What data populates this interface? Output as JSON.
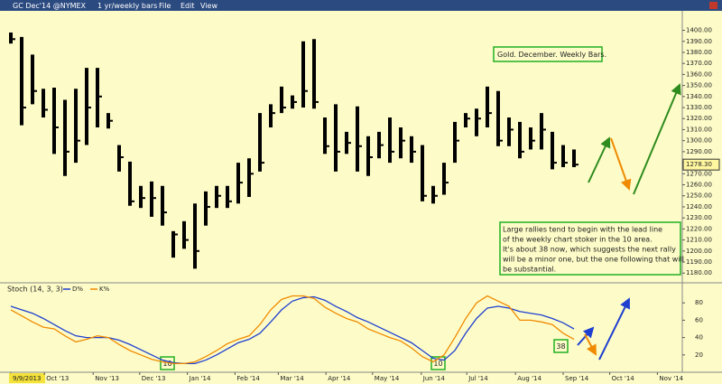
{
  "toolbar": {
    "symbol": "GC Dec'14 @NYMEX",
    "period": "1 yr/weekly bars",
    "menu": [
      "File",
      "Edit",
      "View"
    ]
  },
  "chart_data": [
    {
      "type": "hlc",
      "color": "#000000",
      "high": [
        1398,
        1394,
        1378,
        1347,
        1348,
        1337,
        1347,
        1366,
        1366,
        1325,
        1296,
        1281,
        1259,
        1263,
        1259,
        1218,
        1227,
        1243,
        1254,
        1259,
        1259,
        1280,
        1284,
        1325,
        1333,
        1349,
        1341,
        1390,
        1392,
        1321,
        1333,
        1308,
        1331,
        1304,
        1308,
        1321,
        1312,
        1304,
        1296,
        1259,
        1280,
        1317,
        1325,
        1329,
        1349,
        1345,
        1321,
        1317,
        1312,
        1325,
        1308,
        1296,
        1292
      ],
      "low": [
        1388,
        1314,
        1333,
        1321,
        1288,
        1268,
        1280,
        1296,
        1312,
        1311,
        1272,
        1241,
        1239,
        1231,
        1223,
        1194,
        1202,
        1184,
        1223,
        1239,
        1239,
        1243,
        1249,
        1272,
        1312,
        1325,
        1329,
        1330,
        1329,
        1288,
        1272,
        1288,
        1272,
        1268,
        1284,
        1280,
        1284,
        1280,
        1245,
        1243,
        1251,
        1280,
        1312,
        1304,
        1312,
        1295,
        1295,
        1284,
        1292,
        1292,
        1274,
        1276,
        1276
      ],
      "close": [
        1392,
        1330,
        1345,
        1328,
        1312,
        1290,
        1300,
        1330,
        1340,
        1318,
        1285,
        1245,
        1248,
        1248,
        1235,
        1215,
        1210,
        1200,
        1240,
        1250,
        1245,
        1262,
        1270,
        1280,
        1325,
        1330,
        1335,
        1345,
        1335,
        1295,
        1290,
        1298,
        1295,
        1285,
        1296,
        1290,
        1300,
        1290,
        1250,
        1250,
        1262,
        1300,
        1320,
        1320,
        1325,
        1300,
        1310,
        1290,
        1300,
        1310,
        1280,
        1280,
        1278.3
      ],
      "xlim": [
        -1,
        62
      ],
      "ylim": [
        1172,
        1416
      ],
      "yticks": [
        {
          "value": 1180,
          "label": "1180.00"
        },
        {
          "value": 1190,
          "label": "1190.00"
        },
        {
          "value": 1200,
          "label": "1200.00"
        },
        {
          "value": 1210,
          "label": "1210.00"
        },
        {
          "value": 1220,
          "label": "1220.00"
        },
        {
          "value": 1230,
          "label": "1230.00"
        },
        {
          "value": 1240,
          "label": "1240.00"
        },
        {
          "value": 1250,
          "label": "1250.00"
        },
        {
          "value": 1260,
          "label": "1260.00"
        },
        {
          "value": 1270,
          "label": "1270.00"
        },
        {
          "value": 1280,
          "label": "1280.00"
        },
        {
          "value": 1290,
          "label": "1290.00"
        },
        {
          "value": 1300,
          "label": "1300.00"
        },
        {
          "value": 1310,
          "label": "1310.00"
        },
        {
          "value": 1320,
          "label": "1320.00"
        },
        {
          "value": 1330,
          "label": "1330.00"
        },
        {
          "value": 1340,
          "label": "1340.00"
        },
        {
          "value": 1350,
          "label": "1350.00"
        },
        {
          "value": 1360,
          "label": "1360.00"
        },
        {
          "value": 1370,
          "label": "1370.00"
        },
        {
          "value": 1380,
          "label": "1380.00"
        },
        {
          "value": 1390,
          "label": "1390.00"
        },
        {
          "value": 1400,
          "label": "1400.00"
        }
      ],
      "last_label": "1278.30",
      "title": "Gold. December. Weekly Bars.",
      "note": [
        "Large rallies tend to begin with the lead line",
        "of the weekly chart stoker in the 10 area.",
        "It's about 38 now, which suggests the next rally",
        "will be a minor one, but the one following that will",
        "be substantial."
      ]
    },
    {
      "type": "line",
      "title": "Stoch (14, 3, 3)",
      "series": [
        {
          "name": "D%",
          "color": "#1f3fd0",
          "values": [
            76,
            72,
            68,
            62,
            55,
            48,
            42,
            40,
            40,
            40,
            37,
            32,
            26,
            20,
            14,
            11,
            10,
            10,
            14,
            20,
            27,
            34,
            38,
            45,
            58,
            72,
            82,
            86,
            87,
            83,
            76,
            70,
            63,
            58,
            52,
            46,
            40,
            34,
            25,
            16,
            14,
            25,
            45,
            62,
            74,
            76,
            74,
            70,
            68,
            66,
            62,
            57,
            50
          ]
        },
        {
          "name": "K%",
          "color": "#f08a00",
          "values": [
            72,
            65,
            58,
            52,
            50,
            42,
            35,
            38,
            42,
            40,
            32,
            25,
            20,
            15,
            12,
            10,
            10,
            12,
            18,
            25,
            33,
            38,
            42,
            55,
            72,
            84,
            88,
            88,
            85,
            75,
            68,
            62,
            58,
            50,
            45,
            40,
            36,
            28,
            18,
            12,
            20,
            40,
            62,
            80,
            88,
            82,
            76,
            60,
            60,
            58,
            55,
            45,
            38
          ]
        }
      ],
      "xlim": [
        -1,
        62
      ],
      "ylim": [
        0,
        100
      ],
      "yticks": [
        20,
        40,
        60,
        80
      ],
      "xticks": [
        {
          "value": 0,
          "label": "9/9/2013"
        },
        {
          "value": 3.1,
          "label": "Oct '13"
        },
        {
          "value": 7.6,
          "label": "Nov '13"
        },
        {
          "value": 11.9,
          "label": "Dec '13"
        },
        {
          "value": 16.3,
          "label": "Jan '14"
        },
        {
          "value": 20.7,
          "label": "Feb '14"
        },
        {
          "value": 24.7,
          "label": "Mar '14"
        },
        {
          "value": 29.1,
          "label": "Apr '14"
        },
        {
          "value": 33.4,
          "label": "May '14"
        },
        {
          "value": 37.9,
          "label": "Jun '14"
        },
        {
          "value": 42.1,
          "label": "Jul '14"
        },
        {
          "value": 46.6,
          "label": "Aug '14"
        },
        {
          "value": 51,
          "label": "Sep '14"
        },
        {
          "value": 55.3,
          "label": "Oct '14"
        },
        {
          "value": 59.7,
          "label": "Nov '14"
        }
      ],
      "markers": [
        "10",
        "10",
        "38"
      ]
    }
  ]
}
